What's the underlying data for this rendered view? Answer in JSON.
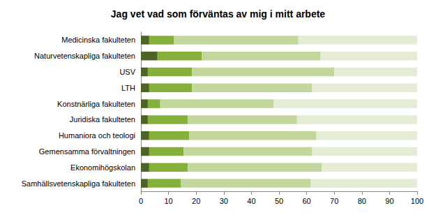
{
  "chart_data": {
    "type": "bar",
    "title": "Jag vet vad som förväntas av mig i mitt arbete",
    "orientation": "horizontal",
    "stacked": true,
    "grid": false,
    "categories": [
      "Medicinska fakulteten",
      "Naturvetenskapliga fakulteten",
      "USV",
      "LTH",
      "Konstnärliga fakulteten",
      "Juridiska fakulteten",
      "Humaniora och teologi",
      "Gemensamma förvaltningen",
      "Ekonomihögskolan",
      "Samhällsvetenskapliga fakulteten"
    ],
    "series": [
      {
        "color": "#4f6228",
        "values": [
          3,
          6,
          2.5,
          3,
          2.5,
          2.5,
          3,
          3,
          3,
          2.5
        ]
      },
      {
        "color": "#86b03c",
        "values": [
          9,
          16,
          16,
          15.5,
          4.5,
          14.5,
          14.5,
          12.5,
          14,
          12
        ]
      },
      {
        "color": "#c3d69b",
        "values": [
          45,
          43,
          51.5,
          43.5,
          41,
          39.5,
          46,
          46.5,
          48.5,
          47
        ]
      },
      {
        "color": "#e4ecd6",
        "values": [
          43,
          35,
          30,
          38,
          52,
          43.5,
          36.5,
          38,
          34.5,
          38.5
        ]
      }
    ],
    "xlim": [
      0,
      100
    ],
    "xticks": [
      0,
      10,
      20,
      30,
      40,
      50,
      60,
      70,
      80,
      90,
      100
    ]
  }
}
